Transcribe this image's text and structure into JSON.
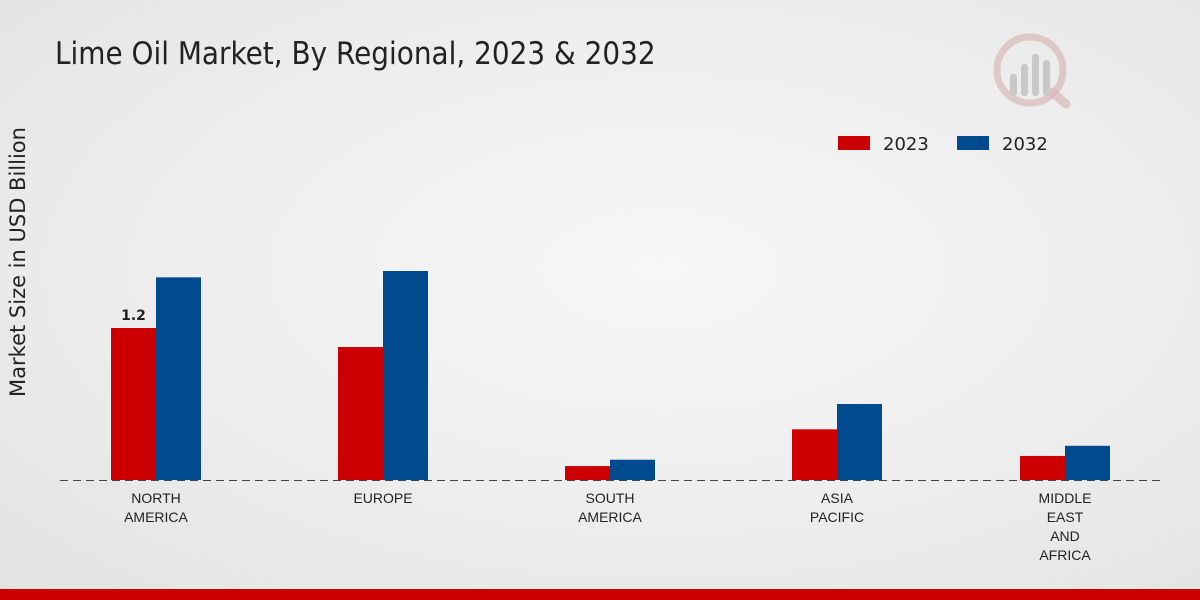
{
  "chart_data": {
    "type": "bar",
    "title": "Lime Oil Market, By Regional, 2023 & 2032",
    "xlabel": "",
    "ylabel": "Market Size in USD Billion",
    "categories": [
      [
        "NORTH",
        "AMERICA"
      ],
      [
        "EUROPE"
      ],
      [
        "SOUTH",
        "AMERICA"
      ],
      [
        "ASIA",
        "PACIFIC"
      ],
      [
        "MIDDLE",
        "EAST",
        "AND",
        "AFRICA"
      ]
    ],
    "series": [
      {
        "name": "2023",
        "color": "#cc0000",
        "values": [
          1.2,
          1.05,
          0.11,
          0.4,
          0.19
        ]
      },
      {
        "name": "2032",
        "color": "#004a8f",
        "values": [
          1.6,
          1.65,
          0.16,
          0.6,
          0.27
        ]
      }
    ],
    "ylim": [
      0,
      3.0
    ],
    "data_labels": [
      {
        "series": 0,
        "index": 0,
        "text": "1.2"
      }
    ],
    "legend_position": "top-right",
    "grid": false,
    "baseline_style": "dashed"
  }
}
